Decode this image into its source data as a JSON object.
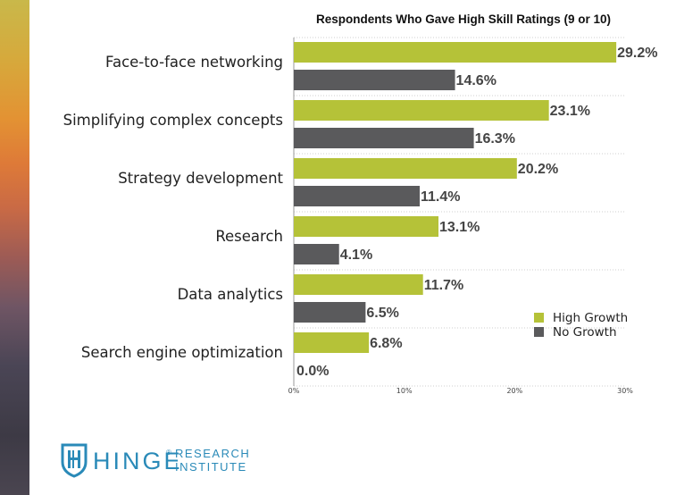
{
  "chart_data": {
    "type": "bar",
    "orientation": "horizontal",
    "title": "Respondents Who Gave High Skill Ratings (9 or 10)",
    "categories": [
      "Face-to-face networking",
      "Simplifying complex concepts",
      "Strategy development",
      "Research",
      "Data analytics",
      "Search engine optimization"
    ],
    "series": [
      {
        "name": "High Growth",
        "color": "#b5c238",
        "values": [
          29.2,
          23.1,
          20.2,
          13.1,
          11.7,
          6.8
        ],
        "labels": [
          "29.2%",
          "23.1%",
          "20.2%",
          "13.1%",
          "11.7%",
          "6.8%"
        ]
      },
      {
        "name": "No Growth",
        "color": "#5a5a5c",
        "values": [
          14.6,
          16.3,
          11.4,
          4.1,
          6.5,
          0.0
        ],
        "labels": [
          "14.6%",
          "16.3%",
          "11.4%",
          "4.1%",
          "6.5%",
          "0.0%"
        ]
      }
    ],
    "xlim": [
      0,
      30
    ],
    "x_ticks": [
      "0%",
      "10%",
      "20%",
      "30%"
    ],
    "grid": true,
    "legend_position": "lower-right"
  },
  "logo": {
    "word": "HINGE",
    "reg": "®",
    "line1": "RESEARCH",
    "line2": "INSTITUTE",
    "color": "#2a8ab8"
  }
}
